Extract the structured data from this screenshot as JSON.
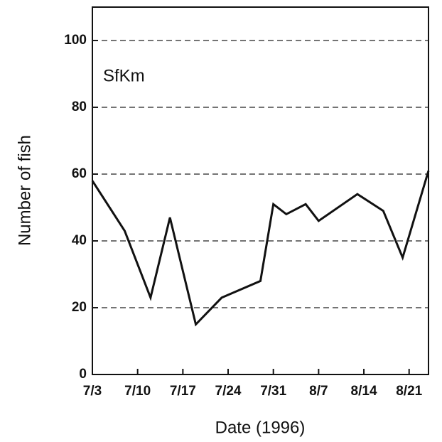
{
  "chart_data": {
    "type": "line",
    "annotation": "SfKm",
    "xlabel": "Date (1996)",
    "ylabel": "Number of fish",
    "x": [
      "1996-07-03",
      "1996-07-08",
      "1996-07-12",
      "1996-07-15",
      "1996-07-19",
      "1996-07-23",
      "1996-07-29",
      "1996-07-31",
      "1996-08-02",
      "1996-08-05",
      "1996-08-07",
      "1996-08-13",
      "1996-08-17",
      "1996-08-20",
      "1996-08-24"
    ],
    "series": [
      {
        "color": "#111111",
        "values": [
          58,
          43,
          23,
          47,
          15,
          23,
          28,
          51,
          48,
          51,
          46,
          54,
          49,
          35,
          61
        ]
      }
    ],
    "xlim": [
      "1996-07-03",
      "1996-08-24"
    ],
    "xticks": [
      {
        "value": "1996-07-03",
        "label": "7/3"
      },
      {
        "value": "1996-07-10",
        "label": "7/10"
      },
      {
        "value": "1996-07-17",
        "label": "7/17"
      },
      {
        "value": "1996-07-24",
        "label": "7/24"
      },
      {
        "value": "1996-07-31",
        "label": "7/31"
      },
      {
        "value": "1996-08-07",
        "label": "8/7"
      },
      {
        "value": "1996-08-14",
        "label": "8/14"
      },
      {
        "value": "1996-08-21",
        "label": "8/21"
      }
    ],
    "ylim": [
      0,
      110
    ],
    "yticks": [
      0,
      20,
      40,
      60,
      80,
      100
    ],
    "grid": true
  }
}
